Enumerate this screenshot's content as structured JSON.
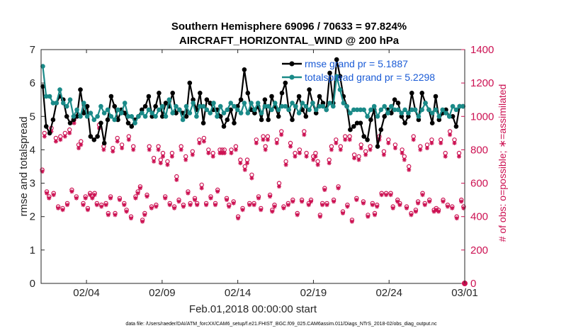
{
  "chart_data": {
    "type": "line",
    "title_line1": "Southern Hemisphere 69096 / 70633 = 97.824%",
    "title_line2": "AIRCRAFT_HORIZONTAL_WIND @ 200 hPa",
    "xlabel": "Feb.01,2018 00:00:00 start",
    "ylabel_left": "rmse and totalspread",
    "ylabel_right": "# of obs: o=possible; ∗=assimilated",
    "footnote": "data file: /Users/raeder/DAI/ATM_forcXX/CAM6_setup/f.e21.FHIST_BGC.f09_025.CAM6assim.011/Diags_NTrS_2018-02/obs_diag_output.nc",
    "x_range_days": [
      0.5,
      28.5
    ],
    "x_ticks": [
      {
        "day": 3.5,
        "label": "02/04"
      },
      {
        "day": 8.5,
        "label": "02/09"
      },
      {
        "day": 13.5,
        "label": "02/14"
      },
      {
        "day": 18.5,
        "label": "02/19"
      },
      {
        "day": 23.5,
        "label": "02/24"
      },
      {
        "day": 28.5,
        "label": "03/01"
      }
    ],
    "ylim_left": [
      0,
      7
    ],
    "yticks_left": [
      "0",
      "1",
      "2",
      "3",
      "4",
      "5",
      "6",
      "7"
    ],
    "ylim_right": [
      0,
      1400
    ],
    "yticks_right": [
      "0",
      "200",
      "400",
      "600",
      "800",
      "1000",
      "1200",
      "1400"
    ],
    "colors": {
      "rmse": "#000000",
      "spread": "#1a8a88",
      "obs": "#cc1152",
      "legend_text": "#1a5bd6"
    },
    "legend": [
      {
        "series": "rmse",
        "label": "rmse grand pr = 5.1887"
      },
      {
        "series": "spread",
        "label": "totalspread grand pr = 5.2298"
      }
    ],
    "series": [
      {
        "name": "rmse",
        "axis": "left",
        "values": [
          5.9,
          4.7,
          4.5,
          4.9,
          5.4,
          5.6,
          5.5,
          5.0,
          4.8,
          4.9,
          5.0,
          5.8,
          5.1,
          5.3,
          4.4,
          4.3,
          4.4,
          4.8,
          4.2,
          4.9,
          5.6,
          5.3,
          4.9,
          5.2,
          5.1,
          4.8,
          4.7,
          4.9,
          5.0,
          5.2,
          5.3,
          5.6,
          5.0,
          5.3,
          5.7,
          5.0,
          5.4,
          5.3,
          5.7,
          5.1,
          5.2,
          5.1,
          5.0,
          6.0,
          5.5,
          5.2,
          5.7,
          4.8,
          5.5,
          5.4,
          5.2,
          5.2,
          5.0,
          4.7,
          4.9,
          5.2,
          4.8,
          5.3,
          5.5,
          6.4,
          5.7,
          5.2,
          5.1,
          5.3,
          4.9,
          5.5,
          4.9,
          5.6,
          5.3,
          5.0,
          5.7,
          6.0,
          5.2,
          4.9,
          5.3,
          5.6,
          5.2,
          5.0,
          5.8,
          5.4,
          5.1,
          5.6,
          5.4,
          5.2,
          6.3,
          5.4,
          6.7,
          6.2,
          5.6,
          5.3,
          4.6,
          4.7,
          4.8,
          4.8,
          4.4,
          4.3,
          4.9,
          5.2,
          4.1,
          4.6,
          5.0,
          5.2,
          5.1,
          5.5,
          5.4,
          5.0,
          4.8,
          5.0,
          5.7,
          5.2,
          4.9,
          5.7,
          5.4,
          5.2,
          4.8,
          5.6,
          4.9,
          5.1,
          5.2,
          5.0,
          5.0,
          4.7,
          5.3,
          5.3
        ]
      },
      {
        "name": "totalspread",
        "axis": "left",
        "values": [
          6.5,
          5.6,
          5.6,
          5.4,
          5.4,
          5.8,
          5.4,
          5.3,
          5.5,
          5.0,
          5.2,
          5.0,
          5.4,
          5.0,
          5.1,
          4.9,
          5.0,
          5.3,
          5.1,
          5.2,
          5.0,
          4.9,
          5.2,
          5.1,
          5.4,
          5.0,
          5.0,
          4.8,
          5.0,
          5.1,
          5.0,
          5.2,
          5.1,
          5.0,
          5.2,
          5.3,
          5.0,
          5.5,
          5.1,
          5.3,
          5.2,
          4.9,
          5.3,
          5.1,
          5.4,
          5.0,
          5.3,
          5.3,
          5.2,
          5.1,
          5.4,
          5.0,
          5.3,
          5.1,
          5.2,
          5.4,
          5.3,
          5.2,
          5.1,
          5.4,
          5.1,
          5.4,
          5.2,
          5.4,
          5.1,
          5.3,
          5.3,
          5.2,
          5.4,
          5.2,
          5.3,
          5.3,
          5.2,
          5.4,
          5.3,
          5.1,
          5.4,
          5.3,
          5.2,
          5.4,
          5.2,
          5.3,
          5.3,
          5.2,
          5.4,
          5.3,
          6.2,
          5.8,
          5.4,
          5.3,
          5.1,
          5.2,
          5.2,
          5.2,
          5.2,
          5.0,
          5.2,
          5.3,
          5.0,
          5.2,
          5.3,
          5.1,
          5.3,
          5.2,
          5.2,
          5.1,
          5.2,
          5.1,
          5.2,
          5.2,
          5.0,
          5.2,
          5.4,
          5.2,
          5.1,
          5.2,
          5.0,
          5.2,
          5.1,
          5.0,
          5.3,
          5.2,
          5.3,
          5.3
        ]
      },
      {
        "name": "obs_possible",
        "axis": "right",
        "values": [
          680,
          900,
          550,
          520,
          930,
          540,
          870,
          460,
          880,
          450,
          900,
          480,
          920,
          560,
          980,
          520,
          830,
          850,
          480,
          520,
          450,
          540,
          520,
          540,
          480,
          950,
          470,
          820,
          480,
          420,
          520,
          810,
          420,
          870,
          510,
          830,
          480,
          440,
          880,
          400,
          820,
          520,
          550,
          580,
          380,
          420,
          530,
          820,
          460,
          750,
          470,
          820,
          740,
          780,
          520,
          730,
          480,
          780,
          460,
          640,
          500,
          820,
          470,
          760,
          550,
          480,
          790,
          510,
          480,
          860,
          590,
          870,
          480,
          800,
          520,
          780,
          480,
          560,
          800,
          800,
          800,
          510,
          470,
          800,
          490,
          820,
          400,
          740,
          450,
          700,
          740,
          480,
          650,
          480,
          860,
          520,
          450,
          880,
          820,
          880,
          530,
          440,
          470,
          860,
          600,
          910,
          460,
          730,
          480,
          840,
          500,
          780,
          420,
          800,
          500,
          910,
          780,
          480,
          500,
          760,
          780,
          730,
          410,
          480,
          570,
          480,
          740,
          820,
          500,
          860,
          580,
          820,
          430,
          880,
          470,
          880,
          380,
          770,
          510,
          760,
          830,
          490,
          790,
          410,
          820,
          480,
          420,
          470,
          880,
          540,
          790,
          540,
          860,
          540,
          460,
          830,
          500,
          480,
          800,
          760,
          460,
          700,
          420,
          880,
          440,
          490,
          820,
          540,
          480,
          830,
          500,
          860,
          440,
          450,
          440,
          860,
          500,
          780,
          470,
          910,
          460,
          860,
          400,
          780,
          500,
          460
        ]
      },
      {
        "name": "obs_assimilated",
        "axis": "right",
        "values": [
          670,
          880,
          540,
          510,
          910,
          530,
          850,
          450,
          860,
          440,
          880,
          470,
          900,
          550,
          960,
          510,
          810,
          830,
          470,
          510,
          440,
          530,
          510,
          530,
          470,
          930,
          460,
          800,
          470,
          410,
          510,
          790,
          410,
          850,
          500,
          810,
          470,
          430,
          860,
          390,
          800,
          510,
          540,
          570,
          370,
          410,
          520,
          800,
          450,
          730,
          460,
          800,
          720,
          760,
          510,
          710,
          470,
          760,
          450,
          620,
          490,
          800,
          460,
          740,
          540,
          470,
          770,
          500,
          470,
          840,
          570,
          850,
          470,
          780,
          510,
          760,
          470,
          550,
          780,
          780,
          780,
          500,
          460,
          780,
          480,
          800,
          390,
          720,
          440,
          680,
          720,
          470,
          630,
          470,
          840,
          510,
          440,
          860,
          800,
          860,
          520,
          430,
          460,
          840,
          580,
          890,
          450,
          710,
          470,
          820,
          490,
          760,
          410,
          780,
          490,
          890,
          760,
          470,
          490,
          740,
          760,
          710,
          400,
          470,
          560,
          470,
          720,
          800,
          490,
          840,
          570,
          800,
          420,
          860,
          460,
          860,
          370,
          750,
          500,
          740,
          810,
          480,
          770,
          400,
          800,
          470,
          410,
          460,
          860,
          530,
          770,
          530,
          840,
          530,
          450,
          810,
          490,
          470,
          780,
          740,
          450,
          680,
          410,
          860,
          430,
          480,
          800,
          530,
          470,
          810,
          490,
          840,
          430,
          440,
          430,
          840,
          490,
          760,
          460,
          890,
          450,
          840,
          390,
          760,
          490,
          450
        ]
      }
    ]
  }
}
